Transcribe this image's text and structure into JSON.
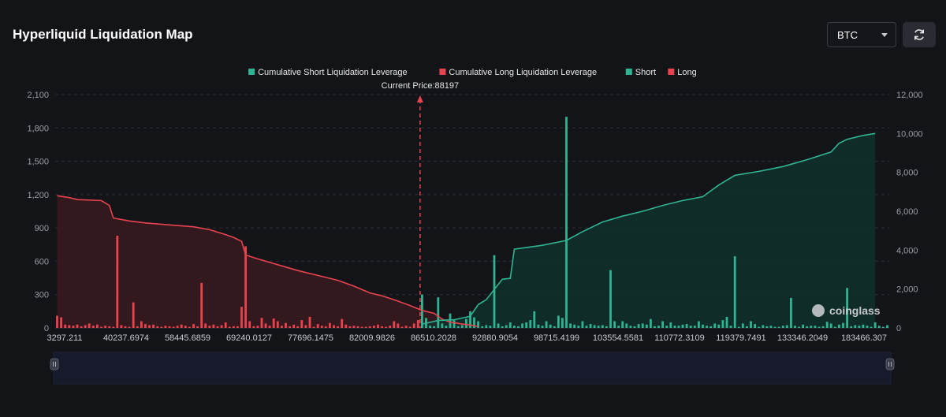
{
  "header": {
    "title": "Hyperliquid Liquidation Map",
    "coin_selected": "BTC"
  },
  "watermark": "coinglass",
  "colors": {
    "long": "#e8434f",
    "short": "#2fb493",
    "long_fill": "#3a1a1e",
    "short_fill": "#10302b",
    "current_price_line": "#e8434f"
  },
  "chart_data": {
    "type": "bar",
    "current_price_label": "Current Price:88197",
    "current_price_category_index": 90,
    "legend": [
      {
        "label": "Cumulative Short Liquidation Leverage",
        "color": "#2fb493"
      },
      {
        "label": "Cumulative Long Liquidation Leverage",
        "color": "#e8434f"
      },
      {
        "label": "Short",
        "color": "#2fb493"
      },
      {
        "label": "Long",
        "color": "#e8434f"
      }
    ],
    "legend_position": "top-center",
    "left_axis": {
      "min": 0,
      "max": 2100,
      "ticks": [
        "0",
        "300",
        "600",
        "900",
        "1,200",
        "1,500",
        "1,800",
        "2,100"
      ]
    },
    "right_axis": {
      "min": 0,
      "max": 12000,
      "ticks": [
        "0",
        "2,000",
        "4,000",
        "6,000",
        "8,000",
        "10,000",
        "12,000"
      ]
    },
    "x_tick_labels": [
      "3297.211",
      "40237.6974",
      "58445.6859",
      "69240.0127",
      "77696.1475",
      "82009.9826",
      "86510.2028",
      "92880.9054",
      "98715.4199",
      "103554.5581",
      "110772.3109",
      "119379.7491",
      "133346.2049",
      "183466.307"
    ],
    "grid": true,
    "long_bars": [
      110,
      95,
      30,
      25,
      20,
      30,
      15,
      25,
      40,
      20,
      30,
      10,
      20,
      15,
      10,
      830,
      25,
      15,
      10,
      230,
      15,
      60,
      35,
      25,
      30,
      15,
      10,
      20,
      15,
      10,
      20,
      30,
      20,
      10,
      35,
      15,
      405,
      40,
      20,
      30,
      15,
      25,
      50,
      10,
      15,
      15,
      190,
      735,
      60,
      15,
      20,
      90,
      40,
      20,
      85,
      60,
      20,
      45,
      15,
      30,
      15,
      70,
      25,
      100,
      10,
      35,
      20,
      15,
      45,
      25,
      15,
      80,
      30,
      15,
      20,
      15,
      10,
      10,
      15,
      20,
      30,
      15,
      10,
      20,
      60,
      40,
      10,
      20,
      10,
      40,
      70
    ],
    "short_bars": [
      300,
      90,
      20,
      15,
      275,
      40,
      20,
      130,
      70,
      15,
      25,
      80,
      150,
      95,
      60,
      15,
      25,
      20,
      655,
      40,
      15,
      25,
      50,
      20,
      15,
      40,
      50,
      70,
      150,
      30,
      20,
      60,
      30,
      15,
      110,
      90,
      1900,
      40,
      30,
      20,
      60,
      20,
      35,
      25,
      20,
      25,
      15,
      520,
      60,
      20,
      60,
      40,
      20,
      15,
      35,
      40,
      30,
      80,
      15,
      20,
      60,
      20,
      50,
      20,
      20,
      30,
      35,
      20,
      20,
      60,
      30,
      20,
      15,
      40,
      30,
      70,
      100,
      20,
      645,
      10,
      40,
      15,
      60,
      35,
      10,
      25,
      15,
      20,
      10,
      10,
      20,
      25,
      270,
      20,
      10,
      30,
      15,
      20,
      20,
      10,
      15,
      55,
      40,
      10,
      30,
      45,
      360,
      15,
      25,
      20,
      30,
      20,
      10,
      50,
      20,
      10,
      25
    ],
    "long_cumulative": [
      [
        0,
        6800
      ],
      [
        3,
        6700
      ],
      [
        5,
        6600
      ],
      [
        11,
        6550
      ],
      [
        13,
        6300
      ],
      [
        14,
        5650
      ],
      [
        18,
        5500
      ],
      [
        22,
        5400
      ],
      [
        28,
        5300
      ],
      [
        34,
        5200
      ],
      [
        38,
        5050
      ],
      [
        42,
        4800
      ],
      [
        44,
        4650
      ],
      [
        46,
        4450
      ],
      [
        47,
        3750
      ],
      [
        50,
        3550
      ],
      [
        55,
        3250
      ],
      [
        60,
        2950
      ],
      [
        65,
        2700
      ],
      [
        70,
        2450
      ],
      [
        74,
        2150
      ],
      [
        78,
        1800
      ],
      [
        81,
        1650
      ],
      [
        84,
        1450
      ],
      [
        88,
        1150
      ],
      [
        91,
        900
      ],
      [
        94,
        750
      ],
      [
        96,
        450
      ],
      [
        98,
        300
      ],
      [
        101,
        200
      ],
      [
        104,
        120
      ],
      [
        105,
        60
      ]
    ],
    "long_cumulative_start_index": 0,
    "short_cumulative": [
      [
        0,
        200
      ],
      [
        4,
        380
      ],
      [
        8,
        420
      ],
      [
        12,
        600
      ],
      [
        14,
        1200
      ],
      [
        16,
        1450
      ],
      [
        20,
        2500
      ],
      [
        22,
        2550
      ],
      [
        23,
        4050
      ],
      [
        30,
        4250
      ],
      [
        36,
        4500
      ],
      [
        40,
        4950
      ],
      [
        45,
        5450
      ],
      [
        50,
        5750
      ],
      [
        55,
        6000
      ],
      [
        60,
        6300
      ],
      [
        65,
        6550
      ],
      [
        70,
        6750
      ],
      [
        72,
        7050
      ],
      [
        74,
        7350
      ],
      [
        78,
        7850
      ],
      [
        84,
        8050
      ],
      [
        90,
        8300
      ],
      [
        96,
        8650
      ],
      [
        102,
        9050
      ],
      [
        104,
        9500
      ],
      [
        106,
        9700
      ],
      [
        110,
        9900
      ],
      [
        113,
        10000
      ]
    ]
  }
}
